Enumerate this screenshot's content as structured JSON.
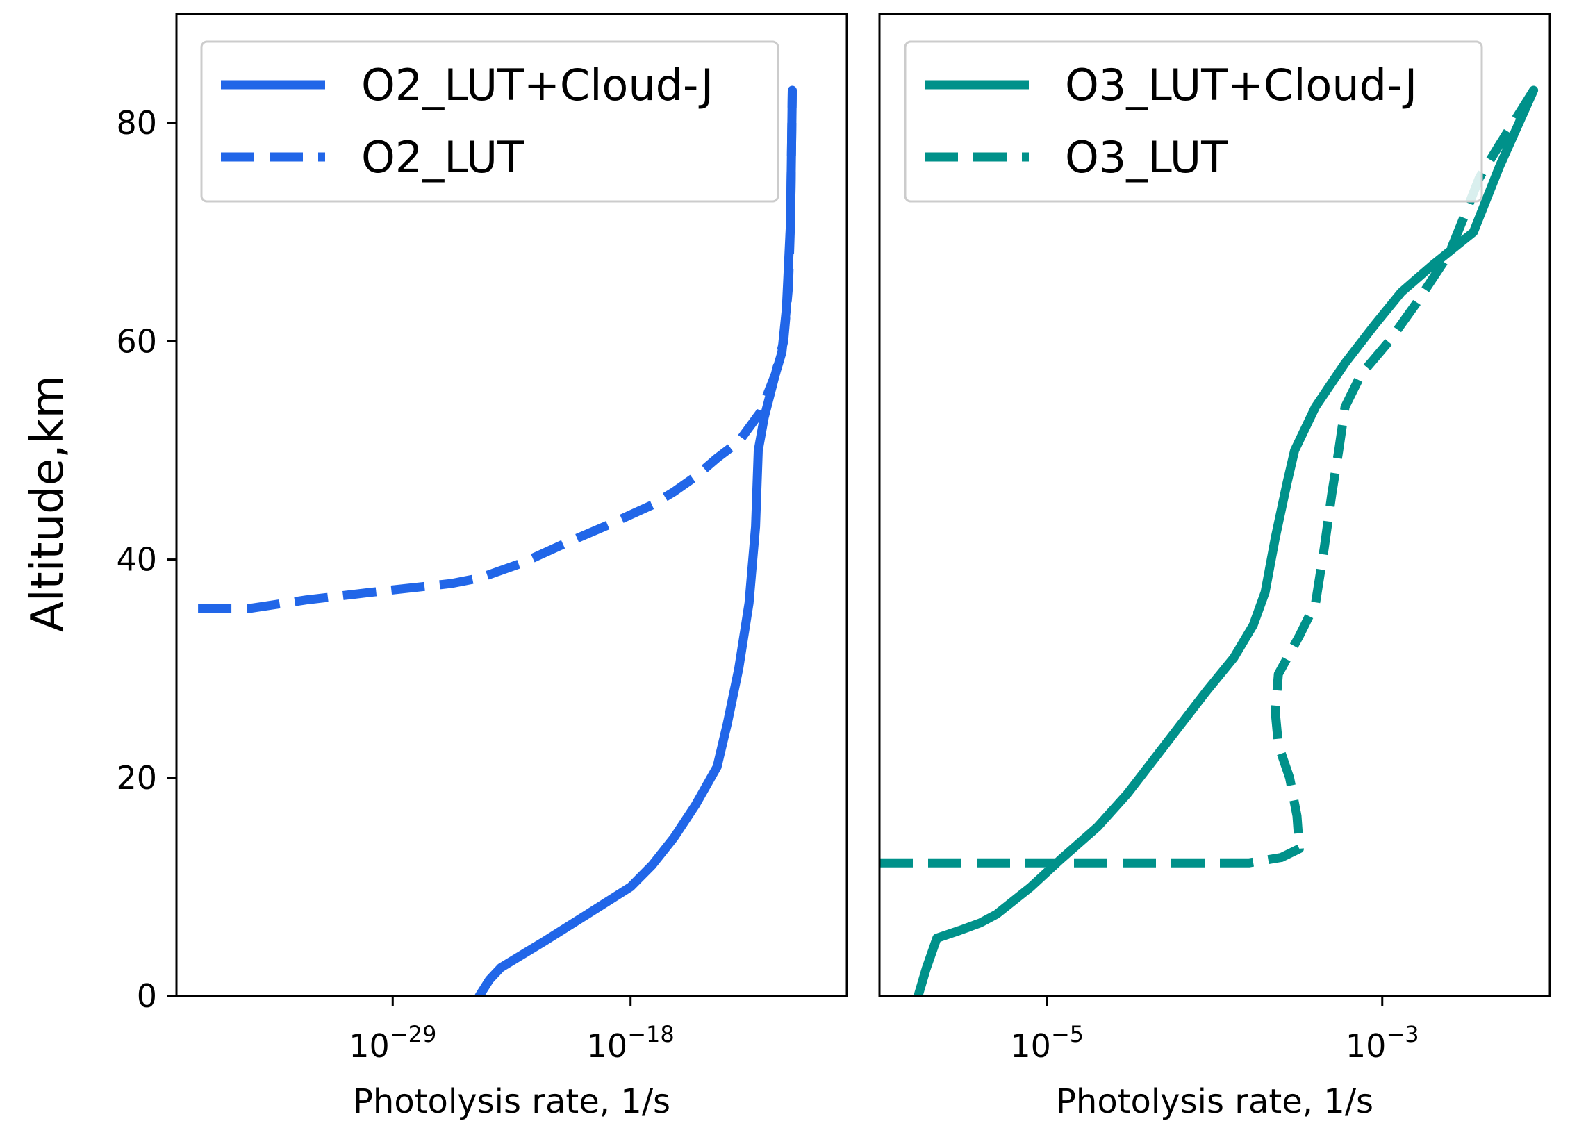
{
  "figure": {
    "ylabel": "Altitude,km"
  },
  "chart_data": [
    {
      "type": "line",
      "xlabel": "Photolysis rate, 1/s",
      "ylabel": "Altitude,km",
      "x_scale": "log",
      "xlim": [
        1e-39,
        1e-08
      ],
      "ylim": [
        0,
        90
      ],
      "xticks": [
        {
          "base": "10",
          "exp": "−29",
          "value": 1e-29
        },
        {
          "base": "10",
          "exp": "−18",
          "value": 1e-18
        }
      ],
      "yticks": [
        {
          "label": "0",
          "value": 0
        },
        {
          "label": "20",
          "value": 20
        },
        {
          "label": "40",
          "value": 40
        },
        {
          "label": "60",
          "value": 60
        },
        {
          "label": "80",
          "value": 80
        }
      ],
      "legend_position": "top",
      "series": [
        {
          "name": "O2_LUT+Cloud-J",
          "style": "solid",
          "color": "#2166e8",
          "points": [
            [
              1e-25,
              0
            ],
            [
              3e-25,
              1.5
            ],
            [
              1e-24,
              2.6
            ],
            [
              1e-22,
              5
            ],
            [
              1e-20,
              7.5
            ],
            [
              1e-18,
              10
            ],
            [
              1e-17,
              12
            ],
            [
              1e-16,
              14.5
            ],
            [
              1e-15,
              17.5
            ],
            [
              1e-14,
              21
            ],
            [
              3e-14,
              25
            ],
            [
              1e-13,
              30
            ],
            [
              3e-13,
              36
            ],
            [
              6e-13,
              43
            ],
            [
              8e-13,
              50
            ],
            [
              1.5e-12,
              53
            ],
            [
              5e-12,
              57
            ],
            [
              1e-11,
              59
            ],
            [
              1.6e-11,
              63
            ],
            [
              2.5e-11,
              71
            ],
            [
              3e-11,
              83
            ]
          ]
        },
        {
          "name": "O2_LUT",
          "style": "dashed",
          "color": "#2166e8",
          "points": [
            [
              1e-38,
              35.5
            ],
            [
              2e-36,
              35.5
            ],
            [
              1e-33,
              36.3
            ],
            [
              1e-30,
              37
            ],
            [
              5e-27,
              37.8
            ],
            [
              1e-25,
              38.3
            ],
            [
              1e-23,
              39.7
            ],
            [
              1e-21,
              41.5
            ],
            [
              1e-19,
              43.2
            ],
            [
              1e-17,
              45
            ],
            [
              1e-16,
              46.2
            ],
            [
              1e-15,
              47.6
            ],
            [
              1e-14,
              49.3
            ],
            [
              1e-13,
              50.8
            ],
            [
              1e-12,
              53.5
            ],
            [
              5e-12,
              57
            ],
            [
              1.2e-11,
              60
            ],
            [
              2e-11,
              65
            ],
            [
              2.5e-11,
              71
            ],
            [
              3e-11,
              83
            ]
          ]
        }
      ]
    },
    {
      "type": "line",
      "xlabel": "Photolysis rate, 1/s",
      "x_scale": "log",
      "xlim": [
        1e-06,
        0.01
      ],
      "ylim": [
        0,
        90
      ],
      "xticks": [
        {
          "base": "10",
          "exp": "−5",
          "value": 1e-05
        },
        {
          "base": "10",
          "exp": "−3",
          "value": 0.001
        }
      ],
      "legend_position": "top",
      "series": [
        {
          "name": "O3_LUT+Cloud-J",
          "style": "solid",
          "color": "#00918a",
          "points": [
            [
              1.7e-06,
              0
            ],
            [
              1.9e-06,
              2.5
            ],
            [
              2.2e-06,
              5.3
            ],
            [
              3e-06,
              6
            ],
            [
              4e-06,
              6.7
            ],
            [
              5e-06,
              7.5
            ],
            [
              8e-06,
              10
            ],
            [
              1.2e-05,
              12.5
            ],
            [
              2e-05,
              15.5
            ],
            [
              3e-05,
              18.5
            ],
            [
              4.5e-05,
              22
            ],
            [
              6e-05,
              24.5
            ],
            [
              9e-05,
              28
            ],
            [
              0.00013,
              31
            ],
            [
              0.00017,
              34
            ],
            [
              0.0002,
              37
            ],
            [
              0.00023,
              42
            ],
            [
              0.00027,
              47
            ],
            [
              0.0003,
              50
            ],
            [
              0.0004,
              54
            ],
            [
              0.0006,
              58
            ],
            [
              0.0009,
              61.5
            ],
            [
              0.0013,
              64.5
            ],
            [
              0.002,
              67
            ],
            [
              0.0035,
              70
            ],
            [
              0.005,
              76
            ],
            [
              0.008,
              83
            ]
          ]
        },
        {
          "name": "O3_LUT",
          "style": "dashed",
          "color": "#00918a",
          "points": [
            [
              1e-06,
              12.2
            ],
            [
              0.00016,
              12.2
            ],
            [
              0.00025,
              12.7
            ],
            [
              0.00032,
              13.5
            ],
            [
              0.00031,
              16.5
            ],
            [
              0.00028,
              20
            ],
            [
              0.00024,
              23
            ],
            [
              0.00023,
              26
            ],
            [
              0.00024,
              29.5
            ],
            [
              0.00032,
              33
            ],
            [
              0.0004,
              36
            ],
            [
              0.00045,
              41
            ],
            [
              0.0005,
              46
            ],
            [
              0.00055,
              50
            ],
            [
              0.0006,
              54
            ],
            [
              0.00075,
              57
            ],
            [
              0.0011,
              60
            ],
            [
              0.0016,
              63.5
            ],
            [
              0.0025,
              68
            ],
            [
              0.003,
              71
            ],
            [
              0.0038,
              75
            ],
            [
              0.005,
              78
            ],
            [
              0.008,
              83
            ]
          ]
        }
      ]
    }
  ]
}
